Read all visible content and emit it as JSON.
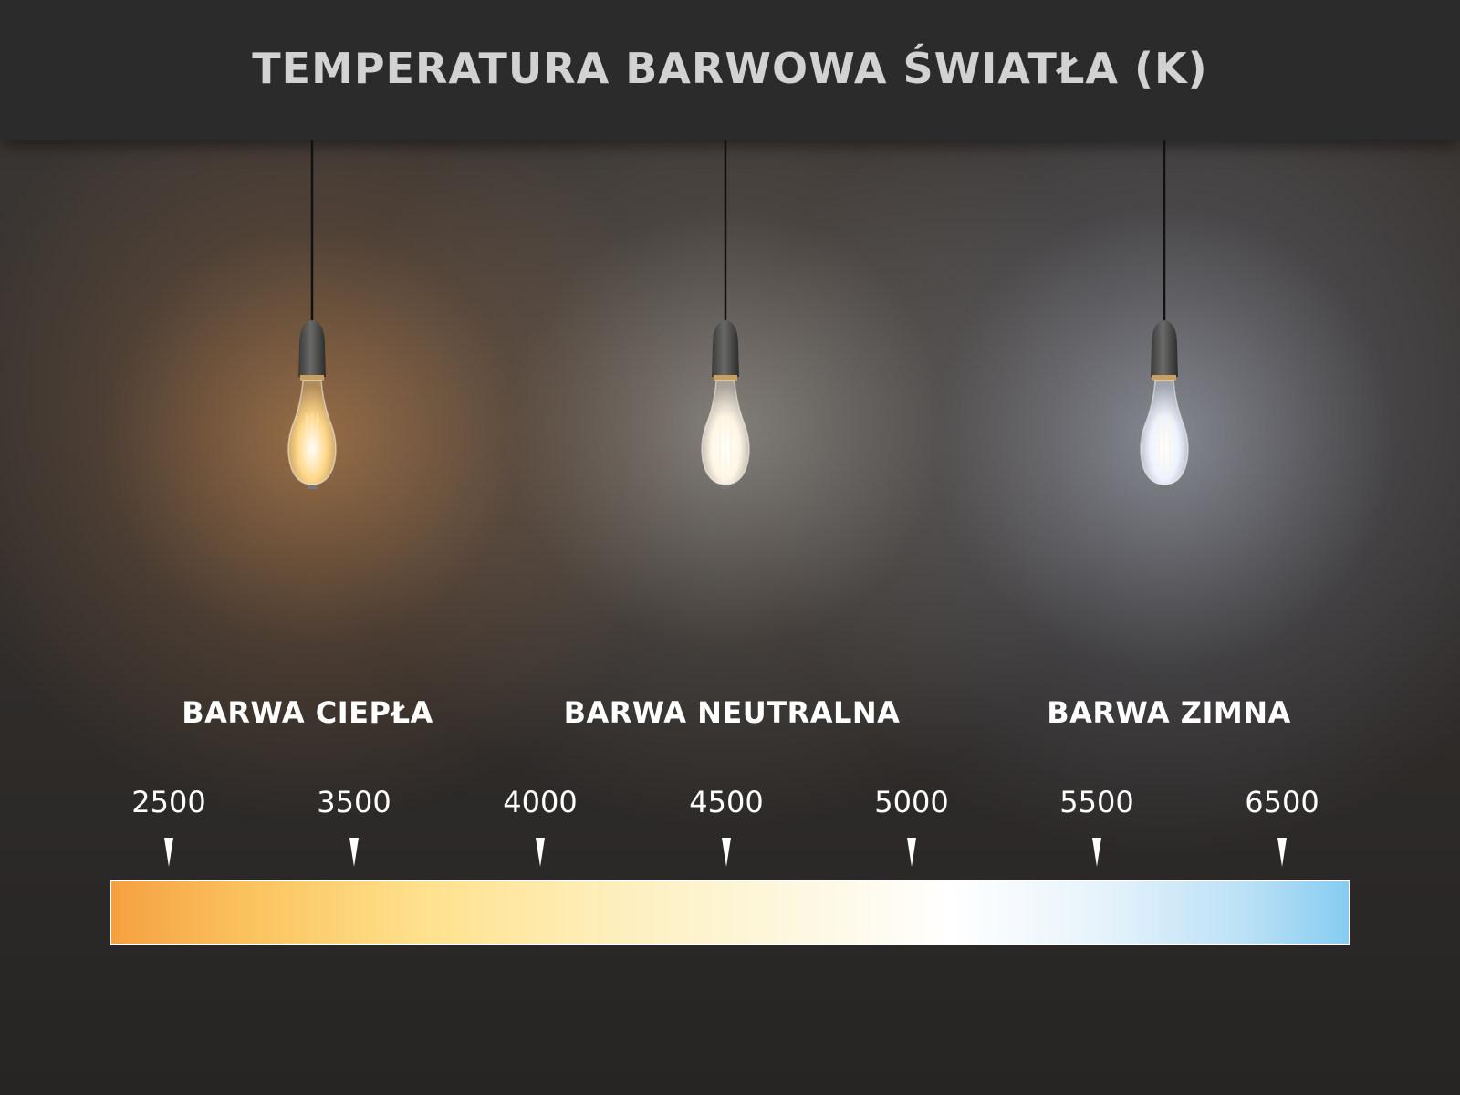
{
  "title": "TEMPERATURA BARWOWA ŚWIATŁA (K)",
  "categories": [
    {
      "label": "BARWA CIEPŁA",
      "bulb_color": "#ffd88a"
    },
    {
      "label": "BARWA NEUTRALNA",
      "bulb_color": "#fff6e6"
    },
    {
      "label": "BARWA ZIMNA",
      "bulb_color": "#eef3ff"
    }
  ],
  "scale": {
    "ticks": [
      "2500",
      "3500",
      "4000",
      "4500",
      "5000",
      "5500",
      "6500"
    ],
    "gradient_start": "#f5a040",
    "gradient_end": "#86ccf1"
  }
}
